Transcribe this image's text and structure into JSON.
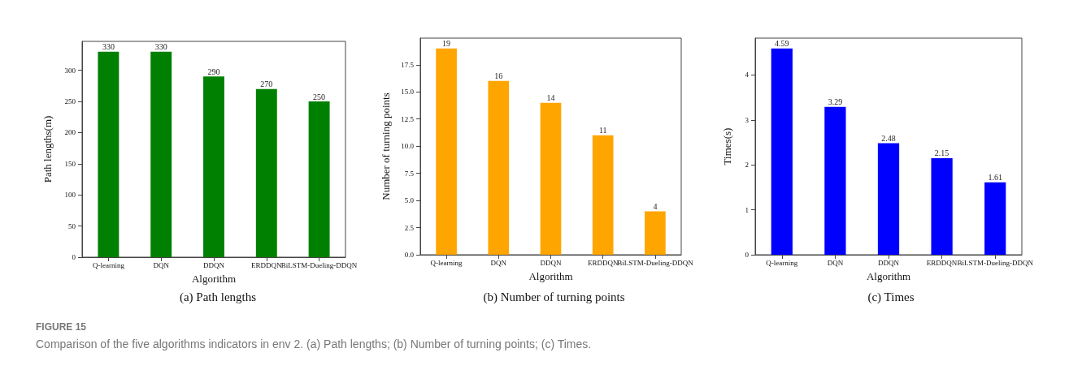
{
  "chart_data": [
    {
      "type": "bar",
      "title": "(a) Path lengths",
      "xlabel": "Algorithm",
      "ylabel": "Path lengths(m)",
      "categories": [
        "Q-learning",
        "DQN",
        "DDQN",
        "ERDDQN",
        "BiLSTM-Dueling-DDQN"
      ],
      "values": [
        330,
        330,
        290,
        270,
        250
      ],
      "color": "#008000",
      "data_labels": true,
      "ylim": [
        0,
        346.5
      ],
      "yticks": [
        0,
        50,
        100,
        150,
        200,
        250,
        300
      ],
      "annotations": [
        "FIGURE 15",
        "Comparison of the five algorithms indicators in env 2. (a) Path lengths; (b) Number of turning points; (c) Times."
      ]
    },
    {
      "type": "bar",
      "title": "(b) Number of turning points",
      "xlabel": "Algorithm",
      "ylabel": "Number of turning points",
      "categories": [
        "Q-learning",
        "DQN",
        "DDQN",
        "ERDDQN",
        "BiLSTM-Dueling-DDQN"
      ],
      "values": [
        19,
        16,
        14,
        11,
        4
      ],
      "color": "#ffa500",
      "data_labels": true,
      "ylim": [
        0,
        19.95
      ],
      "yticks": [
        {
          "value": 0,
          "label": "0.0"
        },
        2.5,
        {
          "value": 5,
          "label": "5.0"
        },
        7.5,
        {
          "value": 10,
          "label": "10.0"
        },
        12.5,
        {
          "value": 15,
          "label": "15.0"
        },
        17.5
      ]
    },
    {
      "type": "bar",
      "title": "(c) Times",
      "xlabel": "Algorithm",
      "ylabel": "Times(s)",
      "categories": [
        "Q-learning",
        "DQN",
        "DDQN",
        "ERDDQN",
        "BiLSTM-Dueling-DDQN"
      ],
      "values": [
        4.59,
        3.29,
        2.48,
        2.15,
        1.61
      ],
      "color": "#0000ff",
      "data_labels": true,
      "ylim": [
        0,
        4.82
      ],
      "yticks": [
        0,
        1,
        2,
        3,
        4
      ]
    }
  ]
}
